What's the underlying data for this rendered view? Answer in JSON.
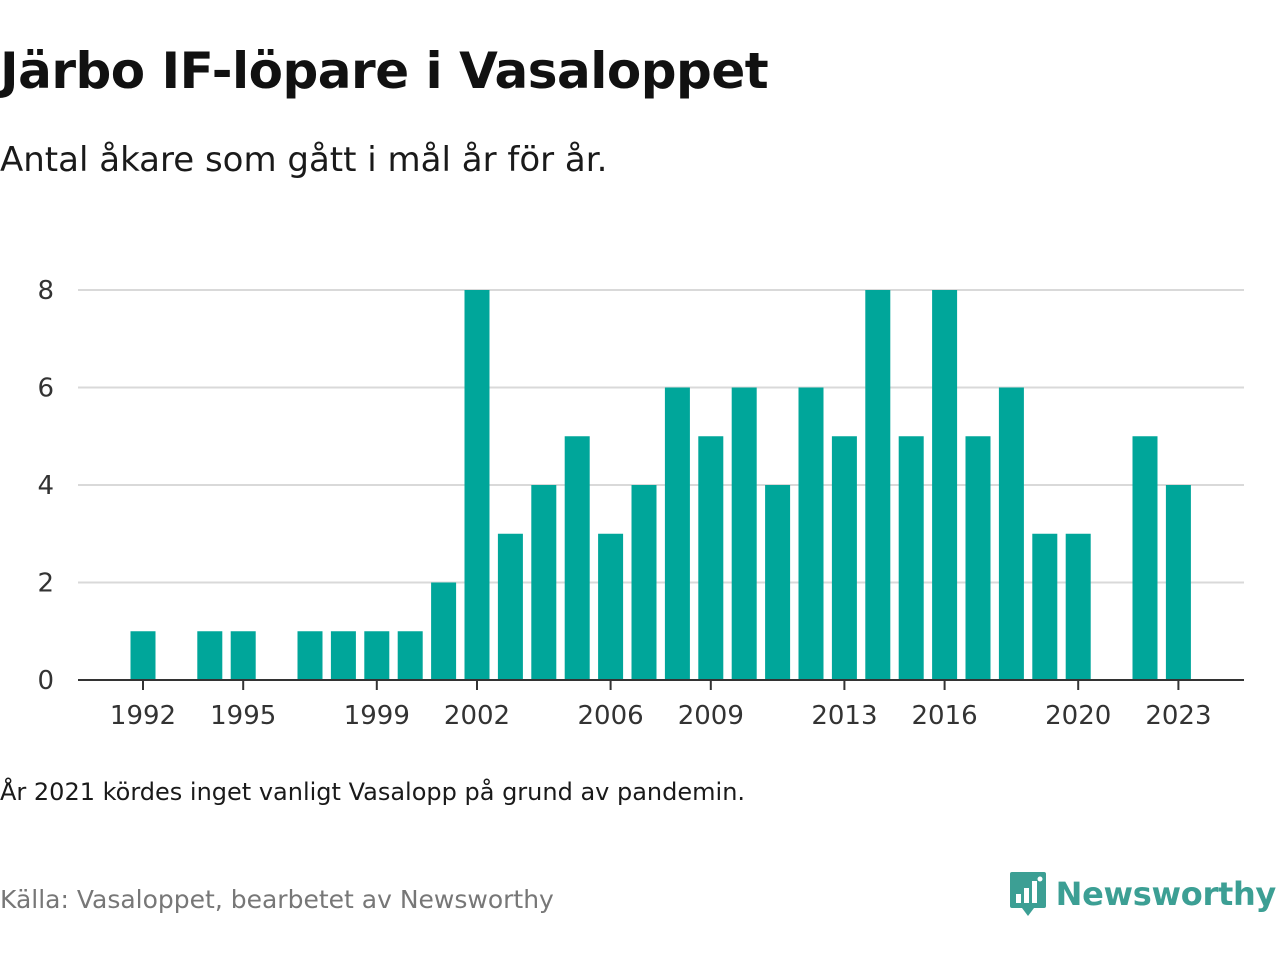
{
  "header": {
    "title": "Järbo IF-löpare i Vasaloppet",
    "subtitle": "Antal åkare som gått i mål år för år."
  },
  "footer": {
    "note": "År 2021 kördes inget vanligt Vasalopp på grund av pandemin.",
    "source": "Källa: Vasaloppet, bearbetet av Newsworthy",
    "brand": "Newsworthy"
  },
  "colors": {
    "bar": "#00a69a",
    "grid": "#d9d9d9",
    "axis": "#333333",
    "brand": "#3c9f94"
  },
  "icons": {
    "brand_logo": "bar-chart-speech-bubble-icon"
  },
  "chart_data": {
    "type": "bar",
    "title": "Järbo IF-löpare i Vasaloppet",
    "subtitle": "Antal åkare som gått i mål år för år.",
    "xlabel": "",
    "ylabel": "",
    "categories": [
      1990,
      1991,
      1992,
      1993,
      1994,
      1995,
      1996,
      1997,
      1998,
      1999,
      2000,
      2001,
      2002,
      2003,
      2004,
      2005,
      2006,
      2007,
      2008,
      2009,
      2010,
      2011,
      2012,
      2013,
      2014,
      2015,
      2016,
      2017,
      2018,
      2019,
      2020,
      2021,
      2022,
      2023
    ],
    "values": [
      0,
      0,
      1,
      0,
      1,
      1,
      0,
      1,
      1,
      1,
      1,
      2,
      8,
      3,
      4,
      5,
      3,
      4,
      6,
      5,
      6,
      4,
      6,
      5,
      8,
      5,
      8,
      5,
      6,
      3,
      3,
      0,
      5,
      4
    ],
    "x_tick_labels": [
      "1992",
      "1995",
      "1999",
      "2002",
      "2006",
      "2009",
      "2013",
      "2016",
      "2020",
      "2023"
    ],
    "y_ticks": [
      0,
      2,
      4,
      6,
      8
    ],
    "ylim": [
      0,
      8
    ],
    "grid": true,
    "legend": "none"
  }
}
